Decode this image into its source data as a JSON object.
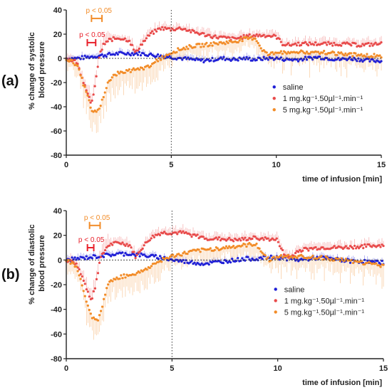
{
  "chart_data": [
    {
      "type": "scatter",
      "panel_label": "(a)",
      "ylabel": [
        "% change of systolic",
        "blood pressure"
      ],
      "xlabel": "time of infusion [min]",
      "xlim": [
        0,
        15
      ],
      "ylim": [
        -80,
        40
      ],
      "xticks": [
        0,
        5,
        10,
        15
      ],
      "yticks": [
        -80,
        -60,
        -40,
        -20,
        0,
        20,
        40
      ],
      "legend_position": "bottom-right",
      "annotations": [
        {
          "text": "p < 0.05",
          "color": "#f28c28",
          "x_range": [
            1.2,
            1.7
          ],
          "y": 33
        },
        {
          "text": "p < 0.05",
          "color": "#e8202a",
          "x_range": [
            1.0,
            1.4
          ],
          "y": 13
        }
      ],
      "series": [
        {
          "name": "saline",
          "color": "#1f1fd6",
          "marker": "circle",
          "x": [
            0,
            0.5,
            1,
            1.5,
            2,
            2.5,
            3,
            3.5,
            4,
            4.5,
            5,
            5.5,
            6,
            6.5,
            7,
            7.5,
            8,
            8.5,
            9,
            9.5,
            10,
            10.5,
            11,
            11.5,
            12,
            12.5,
            13,
            13.5,
            14,
            14.5,
            15
          ],
          "y": [
            0,
            0,
            1,
            2,
            3,
            4,
            4,
            4,
            3,
            2,
            1,
            0,
            -1,
            -2,
            -1,
            0,
            -1,
            0,
            -1,
            0,
            0,
            -1,
            -1,
            0,
            1,
            0,
            -1,
            0,
            -1,
            -2,
            -2
          ]
        },
        {
          "name": "1 mg.kg⁻¹.50µl⁻¹.min⁻¹",
          "color": "#e84a4a",
          "marker": "circle",
          "x": [
            0,
            0.5,
            1,
            1.2,
            1.4,
            1.6,
            1.8,
            2,
            2.5,
            3,
            3.3,
            3.5,
            4,
            4.5,
            5,
            5.5,
            6,
            6.5,
            7,
            7.5,
            8,
            8.5,
            9,
            9.5,
            10,
            10.3,
            10.6,
            11,
            12,
            13,
            14,
            15
          ],
          "y": [
            0,
            -3,
            -28,
            -38,
            -20,
            5,
            12,
            15,
            17,
            15,
            4,
            10,
            20,
            25,
            24,
            25,
            22,
            20,
            18,
            17,
            16,
            18,
            19,
            19,
            18,
            12,
            11,
            12,
            12,
            12,
            11,
            12
          ]
        },
        {
          "name": "5 mg.kg⁻¹.50µl⁻¹.min⁻¹",
          "color": "#f28c28",
          "marker": "circle",
          "x": [
            0,
            0.5,
            1,
            1.2,
            1.4,
            1.6,
            1.8,
            2,
            2.5,
            3,
            3.5,
            4,
            4.5,
            5,
            5.5,
            6,
            6.5,
            7,
            7.5,
            8,
            8.5,
            9,
            9.3,
            9.6,
            10,
            11,
            12,
            13,
            14,
            15
          ],
          "y": [
            0,
            -5,
            -30,
            -42,
            -45,
            -40,
            -30,
            -18,
            -12,
            -10,
            -9,
            -6,
            0,
            5,
            8,
            10,
            11,
            12,
            13,
            14,
            16,
            17,
            8,
            3,
            5,
            5,
            5,
            4,
            3,
            2
          ]
        }
      ]
    },
    {
      "type": "scatter",
      "panel_label": "(b)",
      "ylabel": [
        "% change of diastolic",
        "blood pressure"
      ],
      "xlabel": "time of infusion [min]",
      "xlim": [
        0,
        15
      ],
      "ylim": [
        -80,
        40
      ],
      "xticks": [
        0,
        5,
        10,
        15
      ],
      "yticks": [
        -80,
        -60,
        -40,
        -20,
        0,
        20,
        40
      ],
      "legend_position": "bottom-right",
      "annotations": [
        {
          "text": "p < 0.05",
          "color": "#f28c28",
          "x_range": [
            1.1,
            1.6
          ],
          "y": 28
        },
        {
          "text": "p < 0.05",
          "color": "#e8202a",
          "x_range": [
            1.0,
            1.3
          ],
          "y": 10
        }
      ],
      "series": [
        {
          "name": "saline",
          "color": "#1f1fd6",
          "marker": "circle",
          "x": [
            0,
            0.5,
            1,
            1.5,
            2,
            2.5,
            3,
            3.5,
            4,
            4.5,
            5,
            5.5,
            6,
            6.5,
            7,
            7.5,
            8,
            8.5,
            9,
            9.5,
            10,
            10.5,
            11,
            11.5,
            12,
            12.5,
            13,
            13.5,
            14,
            14.5,
            15
          ],
          "y": [
            0,
            1,
            2,
            3,
            4,
            5,
            5,
            4,
            3,
            2,
            0,
            -1,
            -2,
            -3,
            -2,
            -1,
            0,
            1,
            1,
            2,
            2,
            1,
            0,
            1,
            2,
            1,
            0,
            -1,
            -1,
            -2,
            -2
          ]
        },
        {
          "name": "1 mg.kg⁻¹.50µl⁻¹.min⁻¹",
          "color": "#e84a4a",
          "marker": "circle",
          "x": [
            0,
            0.5,
            1,
            1.2,
            1.4,
            1.6,
            1.8,
            2,
            2.5,
            3,
            3.3,
            3.5,
            4,
            4.5,
            5,
            5.5,
            6,
            6.5,
            7,
            7.5,
            8,
            8.5,
            9,
            9.5,
            10,
            10.3,
            10.6,
            11,
            12,
            13,
            14,
            15
          ],
          "y": [
            0,
            -3,
            -25,
            -32,
            -20,
            0,
            8,
            12,
            14,
            12,
            2,
            8,
            18,
            22,
            22,
            22,
            20,
            18,
            17,
            17,
            16,
            17,
            18,
            17,
            16,
            4,
            2,
            8,
            10,
            10,
            11,
            12
          ]
        },
        {
          "name": "5 mg.kg⁻¹.50µl⁻¹.min⁻¹",
          "color": "#f28c28",
          "marker": "circle",
          "x": [
            0,
            0.5,
            1,
            1.2,
            1.4,
            1.6,
            1.8,
            2,
            2.5,
            3,
            3.5,
            4,
            4.5,
            5,
            5.5,
            6,
            6.5,
            7,
            7.5,
            8,
            8.5,
            9,
            9.3,
            9.6,
            10,
            11,
            12,
            13,
            14,
            15
          ],
          "y": [
            0,
            -5,
            -35,
            -45,
            -50,
            -45,
            -30,
            -18,
            -14,
            -12,
            -10,
            -5,
            0,
            3,
            5,
            7,
            8,
            9,
            10,
            11,
            12,
            13,
            5,
            0,
            3,
            3,
            2,
            0,
            -2,
            -5
          ]
        }
      ]
    }
  ]
}
